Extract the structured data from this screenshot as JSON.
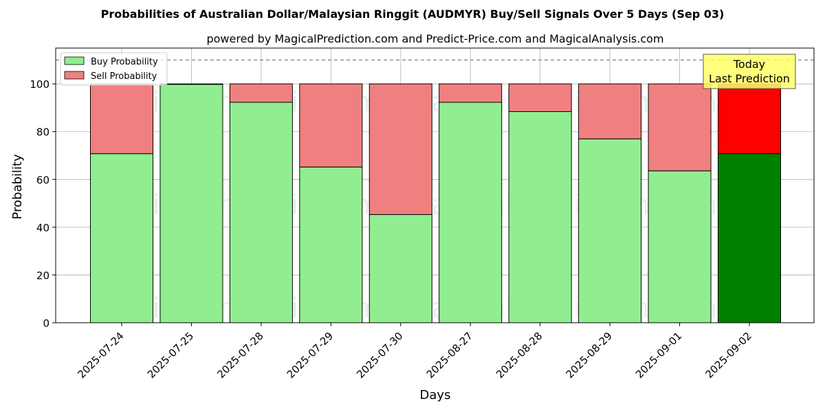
{
  "chart_data": {
    "type": "bar",
    "stacked": true,
    "title": "Probabilities of Australian Dollar/Malaysian Ringgit (AUDMYR) Buy/Sell Signals Over 5 Days (Sep 03)",
    "subtitle": "powered by MagicalPrediction.com and Predict-Price.com and MagicalAnalysis.com",
    "xlabel": "Days",
    "ylabel": "Probability",
    "ylim": [
      0,
      115
    ],
    "yticks": [
      0,
      20,
      40,
      60,
      80,
      100
    ],
    "grid": true,
    "legend_position": "top-left",
    "threshold_line": 110,
    "categories": [
      "2025-07-24",
      "2025-07-25",
      "2025-07-28",
      "2025-07-29",
      "2025-07-30",
      "2025-08-27",
      "2025-08-28",
      "2025-08-29",
      "2025-09-01",
      "2025-09-02"
    ],
    "series": [
      {
        "name": "Buy Probability",
        "color": "#90ee90",
        "values": [
          70.8,
          99.8,
          92.3,
          65.2,
          45.3,
          92.3,
          88.4,
          77.0,
          63.6,
          70.8
        ]
      },
      {
        "name": "Sell Probability",
        "color": "#f08080",
        "values": [
          29.2,
          0.2,
          7.7,
          34.8,
          54.7,
          7.7,
          11.6,
          23.0,
          36.4,
          29.2
        ]
      }
    ],
    "highlight": {
      "index": 9,
      "buy_color": "#008000",
      "sell_color": "#ff0000",
      "label_line1": "Today",
      "label_line2": "Last Prediction",
      "label_bg": "#ffff66"
    },
    "watermarks": [
      "MagicalAnalysis.com",
      "MagicalPrediction.com"
    ]
  }
}
